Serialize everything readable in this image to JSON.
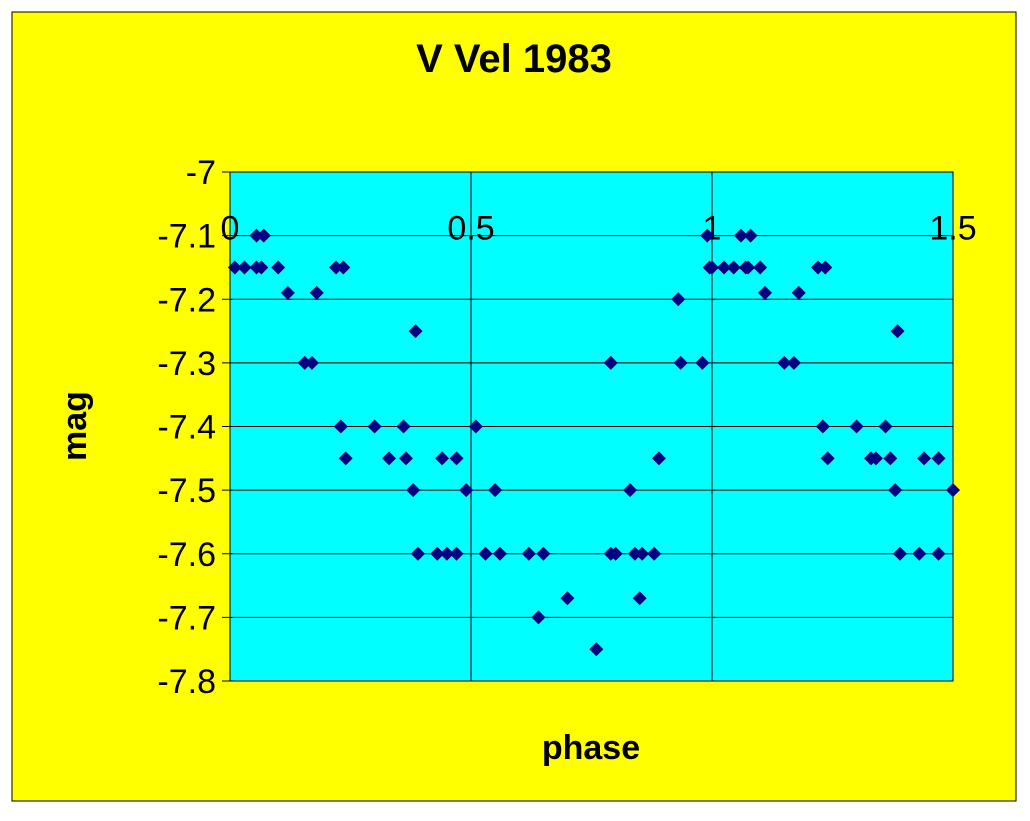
{
  "chart_data": {
    "type": "scatter",
    "title": "V Vel 1983",
    "xlabel": "phase",
    "ylabel": "mag",
    "xlim": [
      0,
      1.5
    ],
    "ylim": [
      -7.8,
      -7.0
    ],
    "x_ticks": [
      0,
      0.5,
      1,
      1.5
    ],
    "x_tick_labels": [
      "0",
      "0.5",
      "1",
      "1.5"
    ],
    "y_ticks": [
      -7.0,
      -7.1,
      -7.2,
      -7.3,
      -7.4,
      -7.5,
      -7.6,
      -7.7,
      -7.8
    ],
    "y_tick_labels": [
      "-7",
      "-7.1",
      "-7.2",
      "-7.3",
      "-7.4",
      "-7.5",
      "-7.6",
      "-7.7",
      "-7.8"
    ],
    "x_axis_position": "top",
    "grid": "horizontal and vertical",
    "legend": "none",
    "colors": {
      "background": "#ffff00",
      "plot_area": "#00ffff",
      "marker": "#000080",
      "gridline": "#000000"
    },
    "series": [
      {
        "points": [
          [
            0.01,
            -7.15
          ],
          [
            0.03,
            -7.15
          ],
          [
            0.055,
            -7.1
          ],
          [
            0.055,
            -7.15
          ],
          [
            0.065,
            -7.15
          ],
          [
            0.07,
            -7.1
          ],
          [
            0.1,
            -7.15
          ],
          [
            0.12,
            -7.19
          ],
          [
            0.155,
            -7.3
          ],
          [
            0.17,
            -7.3
          ],
          [
            0.18,
            -7.19
          ],
          [
            0.22,
            -7.15
          ],
          [
            0.23,
            -7.4
          ],
          [
            0.235,
            -7.15
          ],
          [
            0.24,
            -7.45
          ],
          [
            0.3,
            -7.4
          ],
          [
            0.33,
            -7.45
          ],
          [
            0.36,
            -7.4
          ],
          [
            0.365,
            -7.45
          ],
          [
            0.38,
            -7.5
          ],
          [
            0.385,
            -7.25
          ],
          [
            0.39,
            -7.6
          ],
          [
            0.43,
            -7.6
          ],
          [
            0.44,
            -7.45
          ],
          [
            0.45,
            -7.6
          ],
          [
            0.47,
            -7.45
          ],
          [
            0.47,
            -7.6
          ],
          [
            0.49,
            -7.5
          ],
          [
            0.51,
            -7.4
          ],
          [
            0.53,
            -7.6
          ],
          [
            0.55,
            -7.5
          ],
          [
            0.56,
            -7.6
          ],
          [
            0.62,
            -7.6
          ],
          [
            0.64,
            -7.7
          ],
          [
            0.65,
            -7.6
          ],
          [
            0.7,
            -7.67
          ],
          [
            0.76,
            -7.75
          ],
          [
            0.79,
            -7.6
          ],
          [
            0.79,
            -7.3
          ],
          [
            0.8,
            -7.6
          ],
          [
            0.83,
            -7.5
          ],
          [
            0.84,
            -7.6
          ],
          [
            0.85,
            -7.67
          ],
          [
            0.855,
            -7.6
          ],
          [
            0.88,
            -7.6
          ],
          [
            0.89,
            -7.45
          ],
          [
            0.93,
            -7.2
          ],
          [
            0.935,
            -7.3
          ],
          [
            0.98,
            -7.3
          ],
          [
            0.99,
            -7.1
          ],
          [
            0.995,
            -7.15
          ],
          [
            1.0,
            -7.15
          ],
          [
            1.025,
            -7.15
          ],
          [
            1.045,
            -7.15
          ],
          [
            1.06,
            -7.1
          ],
          [
            1.07,
            -7.15
          ],
          [
            1.075,
            -7.15
          ],
          [
            1.08,
            -7.1
          ],
          [
            1.1,
            -7.15
          ],
          [
            1.11,
            -7.19
          ],
          [
            1.15,
            -7.3
          ],
          [
            1.17,
            -7.3
          ],
          [
            1.18,
            -7.19
          ],
          [
            1.22,
            -7.15
          ],
          [
            1.23,
            -7.4
          ],
          [
            1.235,
            -7.15
          ],
          [
            1.24,
            -7.45
          ],
          [
            1.3,
            -7.4
          ],
          [
            1.33,
            -7.45
          ],
          [
            1.34,
            -7.45
          ],
          [
            1.36,
            -7.4
          ],
          [
            1.37,
            -7.45
          ],
          [
            1.38,
            -7.5
          ],
          [
            1.385,
            -7.25
          ],
          [
            1.39,
            -7.6
          ],
          [
            1.43,
            -7.6
          ],
          [
            1.44,
            -7.45
          ],
          [
            1.47,
            -7.45
          ],
          [
            1.47,
            -7.6
          ],
          [
            1.5,
            -7.5
          ]
        ]
      }
    ]
  }
}
